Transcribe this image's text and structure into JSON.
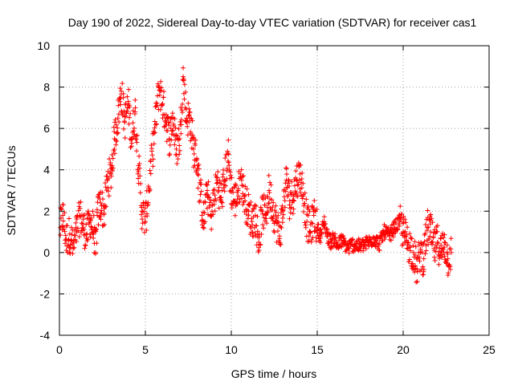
{
  "chart_data": {
    "type": "scatter",
    "title": "Day 190 of 2022, Sidereal Day-to-day VTEC variation (SDTVAR) for receiver cas1",
    "xlabel": "GPS time / hours",
    "ylabel": "SDTVAR / TECUs",
    "xlim": [
      0,
      25
    ],
    "ylim": [
      -4,
      10
    ],
    "xticks": [
      0,
      5,
      10,
      15,
      20,
      25
    ],
    "yticks": [
      -4,
      -2,
      0,
      2,
      4,
      6,
      8,
      10
    ],
    "xtick_labels": [
      "0",
      "5",
      "10",
      "15",
      "20",
      "25"
    ],
    "ytick_labels": [
      "-4",
      "-2",
      "0",
      "2",
      "4",
      "6",
      "8",
      "10"
    ],
    "grid": true,
    "marker": "+",
    "color": "#ff0000",
    "series": [
      {
        "name": "SDTVAR",
        "trend": [
          [
            0.05,
            1.2
          ],
          [
            0.2,
            1.8
          ],
          [
            0.4,
            0.6
          ],
          [
            0.6,
            0.9
          ],
          [
            0.8,
            0.2
          ],
          [
            1.0,
            1.0
          ],
          [
            1.2,
            1.8
          ],
          [
            1.4,
            1.2
          ],
          [
            1.6,
            0.9
          ],
          [
            1.8,
            1.6
          ],
          [
            2.0,
            1.0
          ],
          [
            2.1,
            0.0
          ],
          [
            2.2,
            1.8
          ],
          [
            2.4,
            2.4
          ],
          [
            2.6,
            1.9
          ],
          [
            2.8,
            3.5
          ],
          [
            3.0,
            3.8
          ],
          [
            3.2,
            5.5
          ],
          [
            3.4,
            6.5
          ],
          [
            3.6,
            7.8
          ],
          [
            3.8,
            6.3
          ],
          [
            4.0,
            7.2
          ],
          [
            4.2,
            5.5
          ],
          [
            4.4,
            6.8
          ],
          [
            4.6,
            4.2
          ],
          [
            4.8,
            2.0
          ],
          [
            5.0,
            1.5
          ],
          [
            5.8,
            8.0
          ],
          [
            6.0,
            7.2
          ],
          [
            6.2,
            6.5
          ],
          [
            6.4,
            5.5
          ],
          [
            6.6,
            6.5
          ],
          [
            6.8,
            5.0
          ],
          [
            7.0,
            5.5
          ],
          [
            7.2,
            8.5
          ],
          [
            7.4,
            6.5
          ],
          [
            7.6,
            6.5
          ],
          [
            7.8,
            5.0
          ],
          [
            8.0,
            4.5
          ],
          [
            8.2,
            2.8
          ],
          [
            8.4,
            1.5
          ],
          [
            8.6,
            3.0
          ],
          [
            8.8,
            1.8
          ],
          [
            9.0,
            2.5
          ],
          [
            9.2,
            3.5
          ],
          [
            9.4,
            2.5
          ],
          [
            9.6,
            3.5
          ],
          [
            9.8,
            4.8
          ],
          [
            10.0,
            3.0
          ],
          [
            10.2,
            2.5
          ],
          [
            10.4,
            3.0
          ],
          [
            10.6,
            3.5
          ],
          [
            10.8,
            2.5
          ],
          [
            11.0,
            2.0
          ],
          [
            11.2,
            1.5
          ],
          [
            11.4,
            1.8
          ],
          [
            11.6,
            0.5
          ],
          [
            11.8,
            2.0
          ],
          [
            12.0,
            1.8
          ],
          [
            12.2,
            3.0
          ],
          [
            12.4,
            2.2
          ],
          [
            12.6,
            1.5
          ],
          [
            12.8,
            0.8
          ],
          [
            13.0,
            2.0
          ],
          [
            13.2,
            3.5
          ],
          [
            13.4,
            2.5
          ],
          [
            13.6,
            2.8
          ],
          [
            13.8,
            3.5
          ],
          [
            14.0,
            3.8
          ],
          [
            14.2,
            2.8
          ],
          [
            14.4,
            1.5
          ],
          [
            14.6,
            1.0
          ],
          [
            14.8,
            1.8
          ],
          [
            15.0,
            1.2
          ],
          [
            15.2,
            0.8
          ],
          [
            15.4,
            1.5
          ],
          [
            15.6,
            0.8
          ],
          [
            15.8,
            0.5
          ],
          [
            16.0,
            0.7
          ],
          [
            16.2,
            0.3
          ],
          [
            16.4,
            0.6
          ],
          [
            16.6,
            0.4
          ],
          [
            16.8,
            0.2
          ],
          [
            17.0,
            0.4
          ],
          [
            17.5,
            0.3
          ],
          [
            18.0,
            0.5
          ],
          [
            18.3,
            0.7
          ],
          [
            18.6,
            0.4
          ],
          [
            18.9,
            1.0
          ],
          [
            19.2,
            0.8
          ],
          [
            19.5,
            1.2
          ],
          [
            19.8,
            1.5
          ],
          [
            20.0,
            1.0
          ],
          [
            20.2,
            0.6
          ],
          [
            20.4,
            0.3
          ],
          [
            20.6,
            0.0
          ],
          [
            20.8,
            -0.8
          ],
          [
            21.0,
            0.0
          ],
          [
            21.2,
            -0.3
          ],
          [
            21.4,
            1.2
          ],
          [
            21.6,
            1.0
          ],
          [
            21.8,
            0.2
          ],
          [
            22.0,
            0.5
          ],
          [
            22.2,
            0.0
          ],
          [
            22.4,
            0.5
          ],
          [
            22.6,
            -0.3
          ],
          [
            22.8,
            0.0
          ]
        ]
      }
    ]
  }
}
